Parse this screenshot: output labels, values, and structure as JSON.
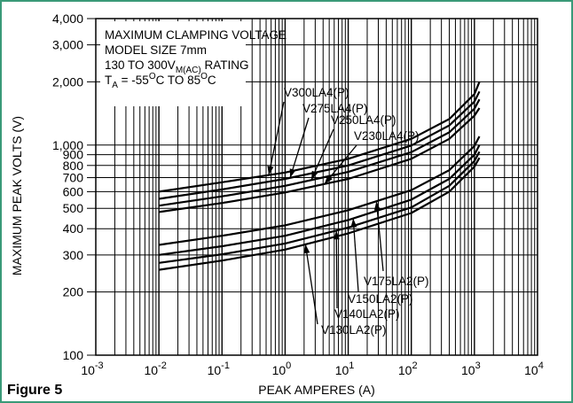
{
  "figure_label": "Figure 5",
  "chart_data": {
    "type": "line",
    "xlabel": "PEAK AMPERES (A)",
    "ylabel": "MAXIMUM PEAK VOLTS (V)",
    "x_scale": "log",
    "y_scale": "log",
    "xlim": [
      0.001,
      10000
    ],
    "ylim": [
      100,
      4000
    ],
    "grid": true,
    "x_ticks": [
      {
        "value": 0.001,
        "base": "10",
        "exp": "-3"
      },
      {
        "value": 0.01,
        "base": "10",
        "exp": "-2"
      },
      {
        "value": 0.1,
        "base": "10",
        "exp": "-1"
      },
      {
        "value": 1,
        "base": "10",
        "exp": "0"
      },
      {
        "value": 10,
        "base": "10",
        "exp": "1"
      },
      {
        "value": 100,
        "base": "10",
        "exp": "2"
      },
      {
        "value": 1000,
        "base": "10",
        "exp": "3"
      },
      {
        "value": 10000,
        "base": "10",
        "exp": "4"
      }
    ],
    "y_ticks": [
      {
        "value": 100,
        "label": "100"
      },
      {
        "value": 200,
        "label": "200"
      },
      {
        "value": 300,
        "label": "300"
      },
      {
        "value": 400,
        "label": "400"
      },
      {
        "value": 500,
        "label": "500"
      },
      {
        "value": 600,
        "label": "600"
      },
      {
        "value": 700,
        "label": "700"
      },
      {
        "value": 800,
        "label": "800"
      },
      {
        "value": 900,
        "label": "900"
      },
      {
        "value": 1000,
        "label": "1,000"
      },
      {
        "value": 2000,
        "label": "2,000"
      },
      {
        "value": 3000,
        "label": "3,000"
      },
      {
        "value": 4000,
        "label": "4,000"
      }
    ],
    "title_lines": [
      {
        "text": "MAXIMUM CLAMPING VOLTAGE"
      },
      {
        "text": "MODEL SIZE 7mm"
      },
      {
        "text": "130 TO 300V",
        "sub": "M(AC)",
        "tail": " RATING"
      },
      {
        "text": "T",
        "sub": "A",
        "tail": " = -55",
        "sup": "O",
        "tail2": "C TO 85",
        "sup2": "O",
        "tail3": "C"
      }
    ],
    "series": [
      {
        "name": "V300LA4(P)",
        "x": [
          0.01,
          0.1,
          1,
          10,
          100,
          400,
          1000,
          1200
        ],
        "y": [
          600,
          665,
          740,
          860,
          1070,
          1330,
          1750,
          2000
        ]
      },
      {
        "name": "V275LA4(P)",
        "x": [
          0.01,
          0.1,
          1,
          10,
          100,
          400,
          1000,
          1200
        ],
        "y": [
          555,
          615,
          690,
          800,
          995,
          1240,
          1610,
          1800
        ]
      },
      {
        "name": "V250LA4(P)",
        "x": [
          0.01,
          0.1,
          1,
          10,
          100,
          400,
          1000,
          1200
        ],
        "y": [
          515,
          570,
          640,
          745,
          925,
          1150,
          1490,
          1650
        ]
      },
      {
        "name": "V230LA4(P)",
        "x": [
          0.01,
          0.1,
          1,
          10,
          100,
          400,
          1000,
          1200
        ],
        "y": [
          480,
          530,
          595,
          690,
          860,
          1070,
          1380,
          1500
        ]
      },
      {
        "name": "V175LA2(P)",
        "x": [
          0.01,
          0.1,
          1,
          10,
          100,
          400,
          1000,
          1200
        ],
        "y": [
          335,
          370,
          415,
          490,
          610,
          760,
          990,
          1100
        ]
      },
      {
        "name": "V150LA2(P)",
        "x": [
          0.01,
          0.1,
          1,
          10,
          100,
          400,
          1000,
          1200
        ],
        "y": [
          300,
          330,
          370,
          440,
          550,
          690,
          900,
          1000
        ]
      },
      {
        "name": "V140LA2(P)",
        "x": [
          0.01,
          0.1,
          1,
          10,
          100,
          400,
          1000,
          1200
        ],
        "y": [
          275,
          302,
          340,
          405,
          505,
          640,
          840,
          930
        ]
      },
      {
        "name": "V130LA2(P)",
        "x": [
          0.01,
          0.1,
          1,
          10,
          100,
          400,
          1000,
          1200
        ],
        "y": [
          255,
          282,
          318,
          380,
          475,
          600,
          790,
          870
        ]
      }
    ]
  }
}
